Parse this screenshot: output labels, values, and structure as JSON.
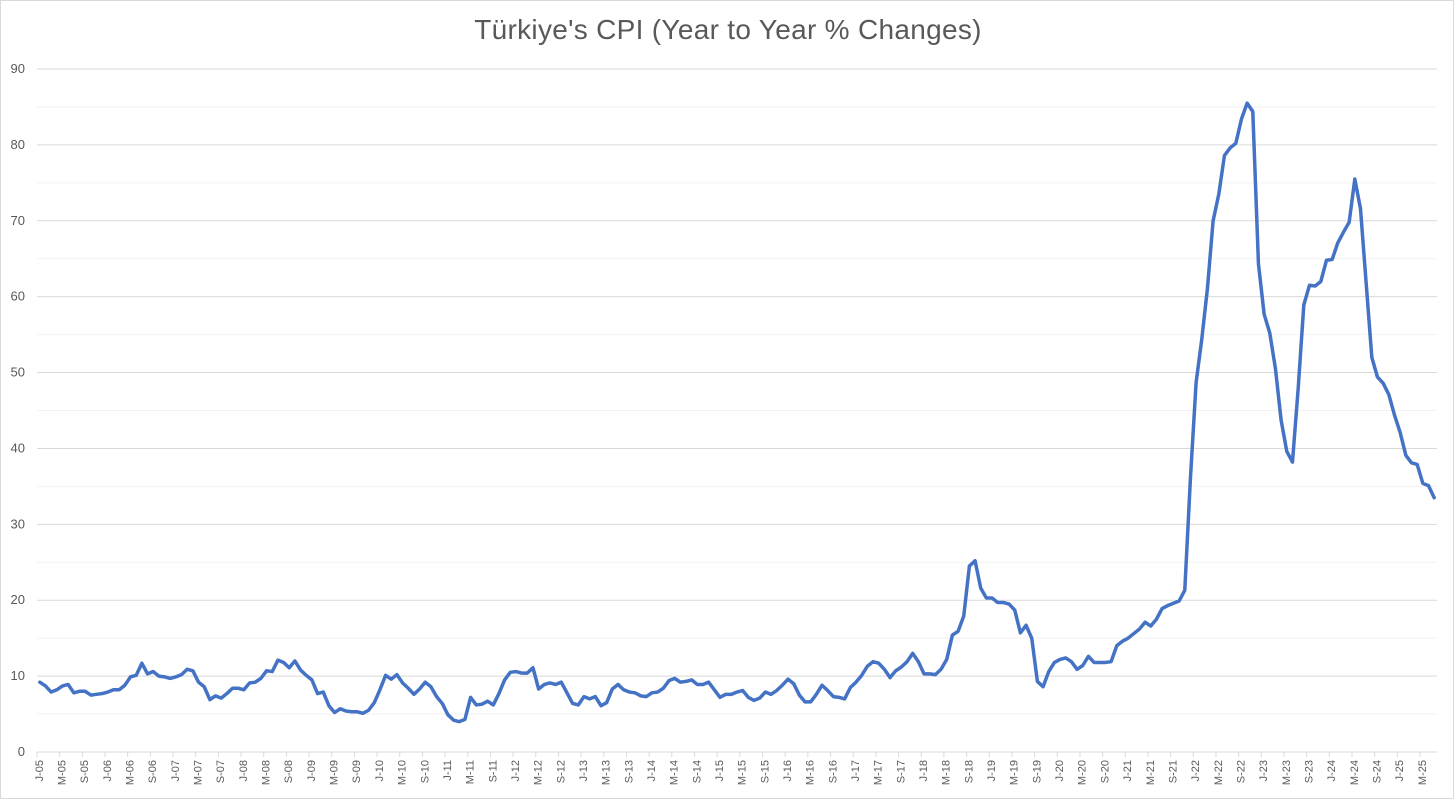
{
  "chart_data": {
    "type": "line",
    "title": "Türkiye's CPI (Year to Year % Changes)",
    "xlabel": "",
    "ylabel": "",
    "ylim": [
      0,
      90
    ],
    "y_ticks": [
      0,
      10,
      20,
      30,
      40,
      50,
      60,
      70,
      80,
      90
    ],
    "y_minor_gridlines": true,
    "legend": "none",
    "line_color": "#4472C4",
    "x_tick_labels": [
      "J-05",
      "M-05",
      "S-05",
      "J-06",
      "M-06",
      "S-06",
      "J-07",
      "M-07",
      "S-07",
      "J-08",
      "M-08",
      "S-08",
      "J-09",
      "M-09",
      "S-09",
      "J-10",
      "M-10",
      "S-10",
      "J-11",
      "M-11",
      "S-11",
      "J-12",
      "M-12",
      "S-12",
      "J-13",
      "M-13",
      "S-13",
      "J-14",
      "M-14",
      "S-14",
      "J-15",
      "M-15",
      "S-15",
      "J-16",
      "M-16",
      "S-16",
      "J-17",
      "M-17",
      "S-17",
      "J-18",
      "M-18",
      "S-18",
      "J-19",
      "M-19",
      "S-19",
      "J-20",
      "M-20",
      "S-20",
      "J-21",
      "M-21",
      "S-21",
      "J-22",
      "M-22",
      "S-22",
      "J-23",
      "M-23",
      "S-23",
      "J-24",
      "M-24",
      "S-24",
      "J-25",
      "M-25"
    ],
    "series": [
      {
        "values": [
          9.2,
          8.7,
          7.9,
          8.2,
          8.7,
          8.9,
          7.8,
          8.0,
          8.0,
          7.5,
          7.6,
          7.7,
          7.9,
          8.2,
          8.2,
          8.8,
          9.9,
          10.1,
          11.7,
          10.3,
          10.6,
          10.0,
          9.9,
          9.7,
          9.9,
          10.2,
          10.9,
          10.7,
          9.2,
          8.6,
          6.9,
          7.4,
          7.1,
          7.7,
          8.4,
          8.4,
          8.2,
          9.1,
          9.2,
          9.7,
          10.7,
          10.6,
          12.1,
          11.8,
          11.1,
          12.0,
          10.8,
          10.1,
          9.5,
          7.7,
          7.9,
          6.1,
          5.2,
          5.7,
          5.4,
          5.3,
          5.3,
          5.1,
          5.5,
          6.5,
          8.2,
          10.1,
          9.6,
          10.2,
          9.1,
          8.4,
          7.6,
          8.3,
          9.2,
          8.6,
          7.3,
          6.4,
          4.9,
          4.2,
          4.0,
          4.3,
          7.2,
          6.2,
          6.3,
          6.7,
          6.2,
          7.7,
          9.5,
          10.5,
          10.6,
          10.4,
          10.4,
          11.1,
          8.3,
          8.9,
          9.1,
          8.9,
          9.2,
          7.8,
          6.4,
          6.2,
          7.3,
          7.0,
          7.3,
          6.1,
          6.5,
          8.3,
          8.9,
          8.2,
          7.9,
          7.8,
          7.4,
          7.3,
          7.8,
          7.9,
          8.4,
          9.4,
          9.7,
          9.2,
          9.3,
          9.5,
          8.9,
          8.9,
          9.2,
          8.2,
          7.2,
          7.6,
          7.6,
          7.9,
          8.1,
          7.2,
          6.8,
          7.1,
          7.9,
          7.6,
          8.1,
          8.8,
          9.6,
          9.0,
          7.5,
          6.6,
          6.6,
          7.6,
          8.8,
          8.1,
          7.3,
          7.2,
          7.0,
          8.5,
          9.2,
          10.1,
          11.3,
          11.9,
          11.7,
          10.9,
          9.8,
          10.7,
          11.2,
          11.9,
          13.0,
          11.9,
          10.3,
          10.3,
          10.2,
          10.9,
          12.2,
          15.4,
          15.9,
          17.9,
          24.5,
          25.2,
          21.6,
          20.3,
          20.3,
          19.7,
          19.7,
          19.5,
          18.7,
          15.7,
          16.7,
          15.0,
          9.3,
          8.6,
          10.6,
          11.8,
          12.2,
          12.4,
          11.9,
          10.9,
          11.4,
          12.6,
          11.8,
          11.8,
          11.8,
          11.9,
          14.0,
          14.6,
          15.0,
          15.6,
          16.2,
          17.1,
          16.6,
          17.5,
          18.9,
          19.3,
          19.6,
          19.9,
          21.3,
          36.1,
          48.7,
          54.4,
          61.1,
          70.0,
          73.5,
          78.6,
          79.6,
          80.2,
          83.4,
          85.5,
          84.4,
          64.3,
          57.7,
          55.2,
          50.5,
          43.7,
          39.6,
          38.2,
          47.8,
          58.9,
          61.5,
          61.4,
          62.0,
          64.8,
          64.9,
          67.1,
          68.5,
          69.8,
          75.5,
          71.6,
          61.8,
          52.0,
          49.4,
          48.6,
          47.1,
          44.4,
          42.1,
          39.1,
          38.1,
          37.9,
          35.4,
          35.1,
          33.5
        ]
      }
    ]
  }
}
